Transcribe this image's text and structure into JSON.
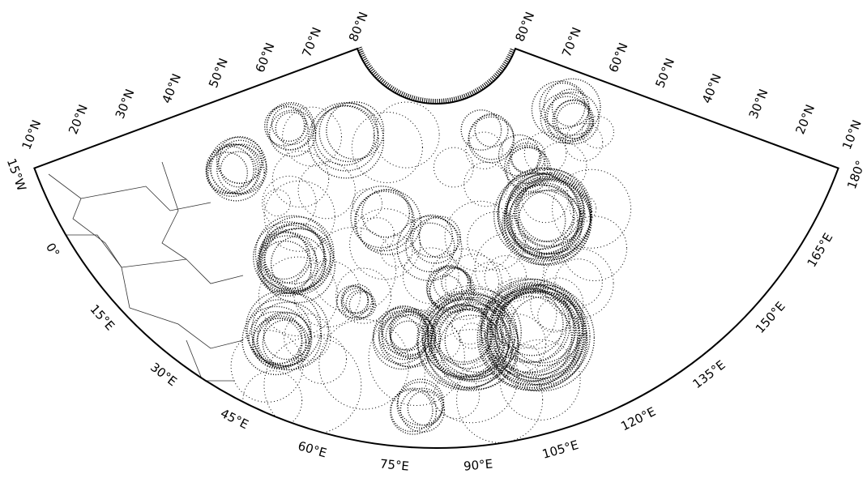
{
  "map": {
    "lat_labels_left": [
      "10°N",
      "20°N",
      "30°N",
      "40°N",
      "50°N",
      "60°N",
      "70°N",
      "80°N"
    ],
    "lat_labels_right": [
      "80°N",
      "70°N",
      "60°N",
      "50°N",
      "40°N",
      "30°N",
      "20°N",
      "10°N"
    ],
    "lon_labels": [
      "15°W",
      "0°",
      "15°E",
      "30°E",
      "45°E",
      "60°E",
      "75°E",
      "90°E",
      "105°E",
      "120°E",
      "135°E",
      "150°E",
      "165°E",
      "180°"
    ]
  }
}
